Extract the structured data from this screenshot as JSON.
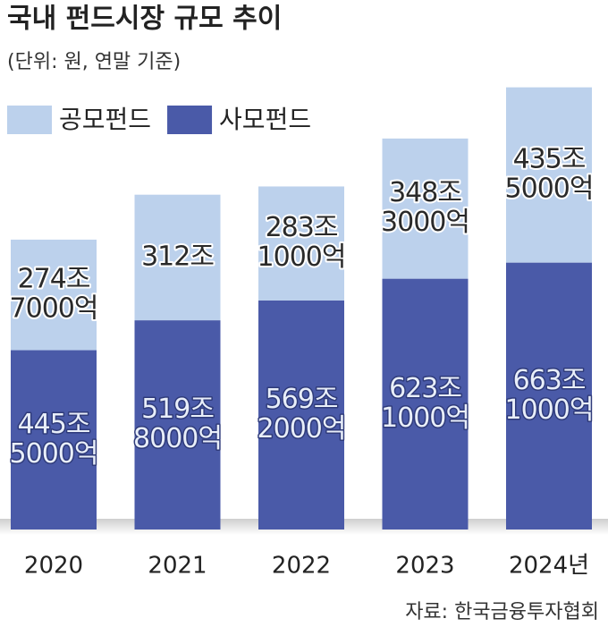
{
  "chart_data": {
    "type": "stacked-bar",
    "title": "국내 펀드시장 규모 추이",
    "subtitle": "(단위: 원, 연말 기준)",
    "source": "자료: 한국금융투자협회",
    "categories": [
      "2020",
      "2021",
      "2022",
      "2023",
      "2024년"
    ],
    "series": [
      {
        "name": "사모펀드",
        "color": "#4a5aa8",
        "values": [
          445.5,
          519.8,
          569.2,
          623.1,
          663.1
        ],
        "value_labels": [
          [
            "445조",
            "5000억"
          ],
          [
            "519조",
            "8000억"
          ],
          [
            "569조",
            "2000억"
          ],
          [
            "623조",
            "1000억"
          ],
          [
            "663조",
            "1000억"
          ]
        ]
      },
      {
        "name": "공모펀드",
        "color": "#bcd1ec",
        "values": [
          274.7,
          312,
          283.1,
          348.3,
          435.5
        ],
        "value_labels": [
          [
            "274조",
            "7000억"
          ],
          [
            "312조"
          ],
          [
            "283조",
            "1000억"
          ],
          [
            "348조",
            "3000억"
          ],
          [
            "435조",
            "5000억"
          ]
        ]
      }
    ],
    "ylim": [
      0,
      1100
    ]
  }
}
